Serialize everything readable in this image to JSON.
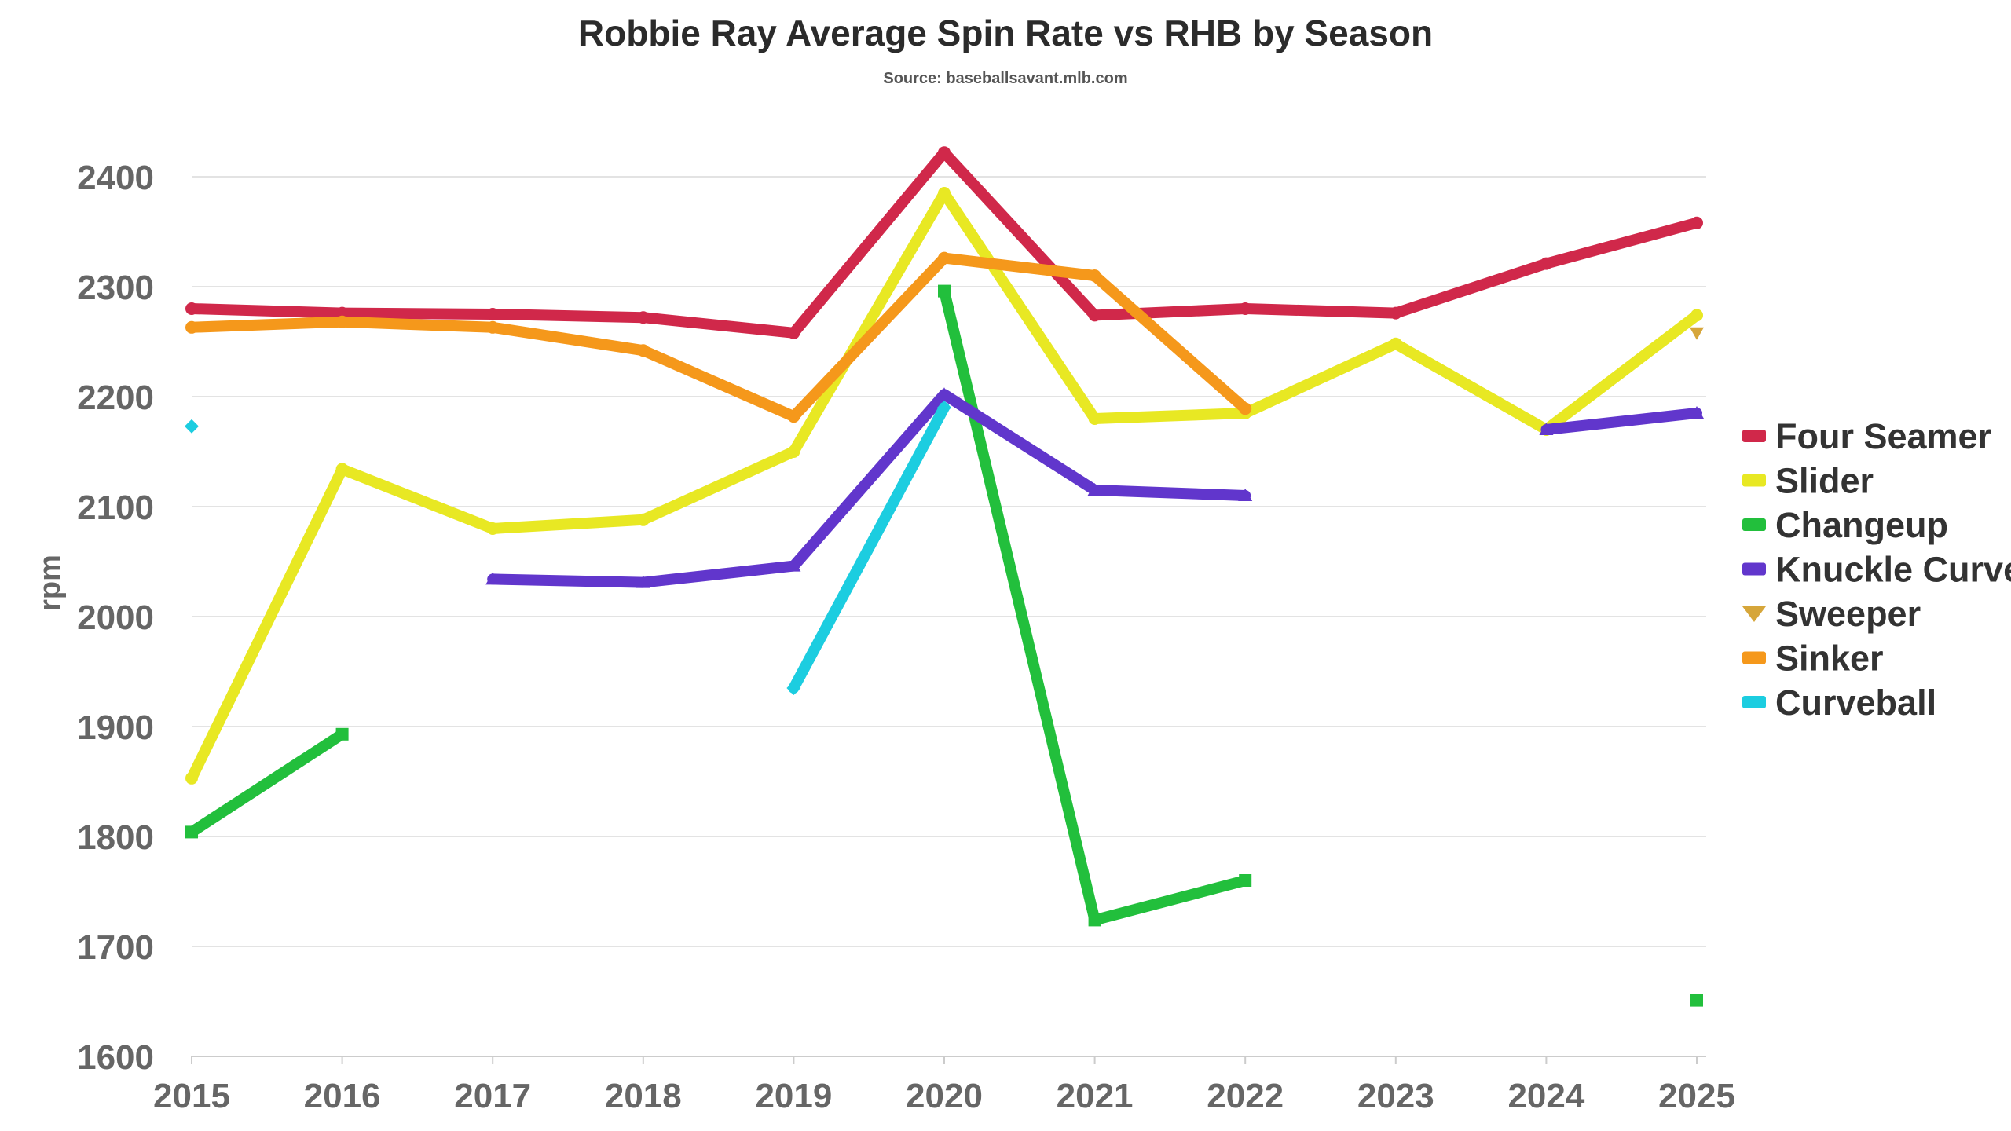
{
  "chart_data": {
    "type": "line",
    "title": "Robbie Ray Average Spin Rate vs RHB by Season",
    "subtitle": "Source: baseballsavant.mlb.com",
    "xlabel": "",
    "ylabel": "rpm",
    "categories": [
      "2015",
      "2016",
      "2017",
      "2018",
      "2019",
      "2020",
      "2021",
      "2022",
      "2023",
      "2024",
      "2025"
    ],
    "ylim": [
      1600,
      2400
    ],
    "yticks": [
      1600,
      1700,
      1800,
      1900,
      2000,
      2100,
      2200,
      2300,
      2400
    ],
    "grid": true,
    "legend_position": "right",
    "series": [
      {
        "name": "Four Seamer",
        "color": "#d0284a",
        "marker": "circle",
        "values": [
          2280,
          2276,
          2275,
          2272,
          2258,
          2422,
          2274,
          2280,
          2276,
          2321,
          2358
        ]
      },
      {
        "name": "Slider",
        "color": "#e8e823",
        "marker": "circle",
        "values": [
          1853,
          2134,
          2080,
          2088,
          2150,
          2385,
          2180,
          2185,
          2248,
          2170,
          2274
        ]
      },
      {
        "name": "Changeup",
        "color": "#22bf3c",
        "marker": "square",
        "values": [
          1804,
          1893,
          null,
          null,
          null,
          2296,
          1724,
          1760,
          null,
          null,
          1651
        ]
      },
      {
        "name": "Knuckle Curve",
        "color": "#6136cc",
        "marker": "triangle",
        "values": [
          null,
          null,
          2034,
          2031,
          2046,
          2202,
          2115,
          2110,
          null,
          2170,
          2185
        ]
      },
      {
        "name": "Sweeper",
        "color": "#d6a63a",
        "marker": "triangle-down",
        "values": [
          null,
          null,
          null,
          null,
          null,
          null,
          null,
          null,
          null,
          null,
          2258
        ]
      },
      {
        "name": "Sinker",
        "color": "#f5981b",
        "marker": "circle",
        "values": [
          2263,
          2268,
          2263,
          2242,
          2182,
          2326,
          2310,
          2189,
          null,
          null,
          null
        ]
      },
      {
        "name": "Curveball",
        "color": "#1ccde0",
        "marker": "diamond",
        "values": [
          2173,
          null,
          null,
          null,
          1935,
          2190,
          null,
          null,
          null,
          null,
          null
        ]
      }
    ]
  }
}
